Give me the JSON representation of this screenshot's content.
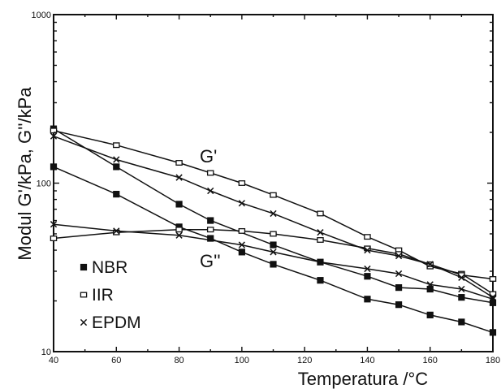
{
  "chart_data": {
    "type": "line",
    "xlabel": "Temperatura /°C",
    "ylabel": "Modul   G'/kPa,  G''/kPa",
    "xlim": [
      40,
      180
    ],
    "ylim": [
      10,
      1000
    ],
    "yscale": "log",
    "x_ticks": [
      "40",
      "60",
      "80",
      "100",
      "120",
      "140",
      "160",
      "180"
    ],
    "y_ticks": [
      "10",
      "100",
      "1000"
    ],
    "grid": false,
    "legend_position": "lower-left",
    "annotations": [
      "G'",
      "G''"
    ],
    "series": [
      {
        "name": "NBR",
        "marker": "square-filled",
        "curve": "G'",
        "x": [
          40,
          60,
          80,
          90,
          110,
          125,
          140,
          150,
          160,
          170,
          180
        ],
        "y": [
          210,
          125,
          75,
          60,
          43,
          34,
          28,
          24,
          23.5,
          21,
          19.5
        ]
      },
      {
        "name": "NBR",
        "marker": "square-filled",
        "curve": "G''",
        "x": [
          40,
          60,
          80,
          90,
          100,
          110,
          125,
          140,
          150,
          160,
          170,
          180
        ],
        "y": [
          125,
          86,
          55,
          47,
          39,
          33,
          26.5,
          20.5,
          19,
          16.5,
          15,
          13
        ]
      },
      {
        "name": "IIR",
        "marker": "square-open",
        "curve": "G'",
        "x": [
          40,
          60,
          80,
          90,
          100,
          110,
          125,
          140,
          150,
          160,
          170,
          180
        ],
        "y": [
          205,
          168,
          132,
          115,
          100,
          85,
          66,
          48,
          40,
          32,
          29,
          22
        ]
      },
      {
        "name": "IIR",
        "marker": "square-open",
        "curve": "G''",
        "x": [
          40,
          60,
          80,
          90,
          100,
          110,
          125,
          140,
          150,
          160,
          170,
          180
        ],
        "y": [
          47,
          51,
          53,
          53,
          52,
          50,
          46,
          41,
          38,
          33,
          28.5,
          27
        ]
      },
      {
        "name": "EPDM",
        "marker": "cross",
        "curve": "G'",
        "x": [
          40,
          60,
          80,
          90,
          100,
          110,
          125,
          140,
          150,
          160,
          170,
          180
        ],
        "y": [
          190,
          138,
          108,
          90,
          76,
          66,
          51,
          40,
          37,
          33,
          27.5,
          21
        ]
      },
      {
        "name": "EPDM",
        "marker": "cross",
        "curve": "G''",
        "x": [
          40,
          60,
          80,
          100,
          110,
          125,
          140,
          150,
          160,
          170,
          180
        ],
        "y": [
          57,
          52,
          49,
          43,
          39,
          34,
          31,
          29,
          25,
          23.5,
          20.5
        ]
      }
    ],
    "legend": [
      {
        "label": "NBR",
        "marker": "square-filled"
      },
      {
        "label": "IIR",
        "marker": "square-open"
      },
      {
        "label": "EPDM",
        "marker": "cross"
      }
    ]
  }
}
